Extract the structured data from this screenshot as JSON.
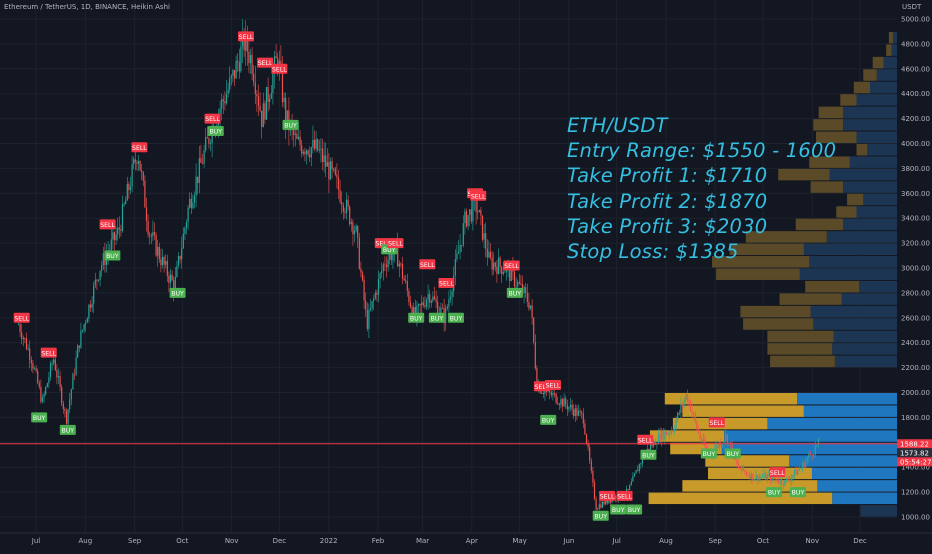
{
  "chart_data": {
    "type": "candlestick",
    "title": "Ethereum / TetherUS, 1D, BINANCE, Heikin Ashi",
    "unit": "USDT",
    "ylim": [
      900,
      5000
    ],
    "y_ticks": [
      1000,
      1200,
      1400,
      1600,
      1800,
      2000,
      2200,
      2400,
      2600,
      2800,
      3000,
      3200,
      3400,
      3600,
      3800,
      4000,
      4200,
      4400,
      4600,
      4800,
      5000
    ],
    "x_ticks": [
      {
        "label": "Jul",
        "date": "2021-07"
      },
      {
        "label": "Aug",
        "date": "2021-08"
      },
      {
        "label": "Sep",
        "date": "2021-09"
      },
      {
        "label": "Oct",
        "date": "2021-10"
      },
      {
        "label": "Nov",
        "date": "2021-11"
      },
      {
        "label": "Dec",
        "date": "2021-12"
      },
      {
        "label": "2022",
        "date": "2022-01"
      },
      {
        "label": "Feb",
        "date": "2022-02"
      },
      {
        "label": "Mar",
        "date": "2022-03"
      },
      {
        "label": "Apr",
        "date": "2022-04"
      },
      {
        "label": "May",
        "date": "2022-05"
      },
      {
        "label": "Jun",
        "date": "2022-06"
      },
      {
        "label": "Jul",
        "date": "2022-07"
      },
      {
        "label": "Aug",
        "date": "2022-08"
      },
      {
        "label": "Sep",
        "date": "2022-09"
      },
      {
        "label": "Oct",
        "date": "2022-10"
      },
      {
        "label": "Nov",
        "date": "2022-11"
      },
      {
        "label": "Dec",
        "date": "2022-12"
      }
    ],
    "price_path": [
      [
        "2021-06-20",
        2550
      ],
      [
        "2021-06-28",
        2280
      ],
      [
        "2021-07-05",
        1920
      ],
      [
        "2021-07-12",
        2280
      ],
      [
        "2021-07-20",
        1780
      ],
      [
        "2021-07-28",
        2400
      ],
      [
        "2021-08-10",
        3000
      ],
      [
        "2021-08-22",
        3300
      ],
      [
        "2021-09-03",
        3950
      ],
      [
        "2021-09-10",
        3300
      ],
      [
        "2021-09-20",
        3000
      ],
      [
        "2021-09-26",
        2850
      ],
      [
        "2021-10-05",
        3500
      ],
      [
        "2021-10-20",
        4150
      ],
      [
        "2021-11-01",
        4500
      ],
      [
        "2021-11-09",
        4820
      ],
      [
        "2021-11-14",
        4650
      ],
      [
        "2021-11-20",
        4200
      ],
      [
        "2021-11-30",
        4700
      ],
      [
        "2021-12-05",
        4200
      ],
      [
        "2021-12-12",
        4000
      ],
      [
        "2021-12-25",
        3950
      ],
      [
        "2022-01-05",
        3700
      ],
      [
        "2022-01-18",
        3300
      ],
      [
        "2022-01-25",
        2550
      ],
      [
        "2022-02-05",
        3050
      ],
      [
        "2022-02-12",
        3150
      ],
      [
        "2022-02-24",
        2600
      ],
      [
        "2022-03-05",
        2800
      ],
      [
        "2022-03-15",
        2600
      ],
      [
        "2022-03-28",
        3400
      ],
      [
        "2022-04-04",
        3500
      ],
      [
        "2022-04-12",
        3050
      ],
      [
        "2022-04-22",
        3000
      ],
      [
        "2022-05-01",
        2850
      ],
      [
        "2022-05-08",
        2700
      ],
      [
        "2022-05-12",
        2050
      ],
      [
        "2022-05-25",
        1950
      ],
      [
        "2022-06-10",
        1800
      ],
      [
        "2022-06-18",
        1080
      ],
      [
        "2022-06-28",
        1150
      ],
      [
        "2022-07-08",
        1200
      ],
      [
        "2022-07-18",
        1500
      ],
      [
        "2022-07-28",
        1650
      ],
      [
        "2022-08-05",
        1700
      ],
      [
        "2022-08-14",
        1990
      ],
      [
        "2022-08-22",
        1650
      ],
      [
        "2022-08-28",
        1500
      ],
      [
        "2022-09-08",
        1650
      ],
      [
        "2022-09-15",
        1400
      ],
      [
        "2022-09-25",
        1320
      ],
      [
        "2022-10-05",
        1320
      ],
      [
        "2022-10-15",
        1280
      ],
      [
        "2022-10-25",
        1400
      ],
      [
        "2022-11-05",
        1590
      ]
    ],
    "signals": [
      {
        "type": "SELL",
        "date": "2021-06-22",
        "price": 2600
      },
      {
        "type": "BUY",
        "date": "2021-07-03",
        "price": 1800
      },
      {
        "type": "SELL",
        "date": "2021-07-09",
        "price": 2320
      },
      {
        "type": "BUY",
        "date": "2021-07-21",
        "price": 1700
      },
      {
        "type": "SELL",
        "date": "2021-08-15",
        "price": 3350
      },
      {
        "type": "BUY",
        "date": "2021-08-18",
        "price": 3100
      },
      {
        "type": "SELL",
        "date": "2021-09-04",
        "price": 3970
      },
      {
        "type": "BUY",
        "date": "2021-09-28",
        "price": 2800
      },
      {
        "type": "SELL",
        "date": "2021-10-20",
        "price": 4200
      },
      {
        "type": "BUY",
        "date": "2021-10-22",
        "price": 4100
      },
      {
        "type": "SELL",
        "date": "2021-11-10",
        "price": 4860
      },
      {
        "type": "SELL",
        "date": "2021-11-22",
        "price": 4650
      },
      {
        "type": "SELL",
        "date": "2021-12-01",
        "price": 4600
      },
      {
        "type": "BUY",
        "date": "2021-12-08",
        "price": 4150
      },
      {
        "type": "SELL",
        "date": "2022-02-04",
        "price": 3200
      },
      {
        "type": "BUY",
        "date": "2022-02-08",
        "price": 3150
      },
      {
        "type": "SELL",
        "date": "2022-02-12",
        "price": 3200
      },
      {
        "type": "BUY",
        "date": "2022-02-25",
        "price": 2600
      },
      {
        "type": "SELL",
        "date": "2022-03-04",
        "price": 3030
      },
      {
        "type": "BUY",
        "date": "2022-03-10",
        "price": 2600
      },
      {
        "type": "SELL",
        "date": "2022-03-16",
        "price": 2880
      },
      {
        "type": "BUY",
        "date": "2022-03-22",
        "price": 2600
      },
      {
        "type": "SELL",
        "date": "2022-04-03",
        "price": 3600
      },
      {
        "type": "SELL",
        "date": "2022-04-05",
        "price": 3580
      },
      {
        "type": "SELL",
        "date": "2022-04-26",
        "price": 3020
      },
      {
        "type": "BUY",
        "date": "2022-04-28",
        "price": 2800
      },
      {
        "type": "SELL",
        "date": "2022-05-15",
        "price": 2050
      },
      {
        "type": "BUY",
        "date": "2022-05-19",
        "price": 1780
      },
      {
        "type": "SELL",
        "date": "2022-05-22",
        "price": 2060
      },
      {
        "type": "BUY",
        "date": "2022-06-21",
        "price": 1010
      },
      {
        "type": "SELL",
        "date": "2022-06-25",
        "price": 1170
      },
      {
        "type": "BUY",
        "date": "2022-07-02",
        "price": 1060
      },
      {
        "type": "SELL",
        "date": "2022-07-06",
        "price": 1170
      },
      {
        "type": "BUY",
        "date": "2022-07-12",
        "price": 1060
      },
      {
        "type": "SELL",
        "date": "2022-07-19",
        "price": 1620
      },
      {
        "type": "BUY",
        "date": "2022-07-21",
        "price": 1500
      },
      {
        "type": "BUY",
        "date": "2022-08-28",
        "price": 1510
      },
      {
        "type": "SELL",
        "date": "2022-09-02",
        "price": 1760
      },
      {
        "type": "BUY",
        "date": "2022-09-12",
        "price": 1510
      },
      {
        "type": "SELL",
        "date": "2022-10-10",
        "price": 1360
      },
      {
        "type": "BUY",
        "date": "2022-10-08",
        "price": 1200
      },
      {
        "type": "BUY",
        "date": "2022-10-23",
        "price": 1200
      }
    ],
    "volume_profile": [
      {
        "low": 1000,
        "high": 1100,
        "up": 0,
        "down": 27
      },
      {
        "low": 1100,
        "high": 1200,
        "up": 136,
        "down": 48
      },
      {
        "low": 1200,
        "high": 1300,
        "up": 100,
        "down": 59
      },
      {
        "low": 1300,
        "high": 1400,
        "up": 77,
        "down": 63
      },
      {
        "low": 1400,
        "high": 1500,
        "up": 62,
        "down": 80
      },
      {
        "low": 1500,
        "high": 1600,
        "up": 38,
        "down": 130
      },
      {
        "low": 1600,
        "high": 1700,
        "up": 55,
        "down": 128
      },
      {
        "low": 1700,
        "high": 1800,
        "up": 70,
        "down": 96
      },
      {
        "low": 1800,
        "high": 1900,
        "up": 90,
        "down": 69
      },
      {
        "low": 1900,
        "high": 2000,
        "up": 98,
        "down": 74
      },
      {
        "low": 2000,
        "high": 2100,
        "up": 0,
        "down": 0
      },
      {
        "low": 2100,
        "high": 2200,
        "up": 0,
        "down": 0
      },
      {
        "low": 2200,
        "high": 2300,
        "up": 48,
        "down": 46
      },
      {
        "low": 2300,
        "high": 2400,
        "up": 48,
        "down": 48
      },
      {
        "low": 2400,
        "high": 2500,
        "up": 49,
        "down": 47
      },
      {
        "low": 2500,
        "high": 2600,
        "up": 52,
        "down": 62
      },
      {
        "low": 2600,
        "high": 2700,
        "up": 52,
        "down": 64
      },
      {
        "low": 2700,
        "high": 2800,
        "up": 46,
        "down": 41
      },
      {
        "low": 2800,
        "high": 2900,
        "up": 40,
        "down": 28
      },
      {
        "low": 2900,
        "high": 3000,
        "up": 62,
        "down": 72
      },
      {
        "low": 3000,
        "high": 3100,
        "up": 72,
        "down": 65
      },
      {
        "low": 3100,
        "high": 3200,
        "up": 55,
        "down": 69
      },
      {
        "low": 3200,
        "high": 3300,
        "up": 60,
        "down": 52
      },
      {
        "low": 3300,
        "high": 3400,
        "up": 35,
        "down": 40
      },
      {
        "low": 3400,
        "high": 3500,
        "up": 15,
        "down": 30
      },
      {
        "low": 3500,
        "high": 3600,
        "up": 12,
        "down": 25
      },
      {
        "low": 3600,
        "high": 3700,
        "up": 24,
        "down": 40
      },
      {
        "low": 3700,
        "high": 3800,
        "up": 38,
        "down": 50
      },
      {
        "low": 3800,
        "high": 3900,
        "up": 30,
        "down": 35
      },
      {
        "low": 3900,
        "high": 4000,
        "up": 8,
        "down": 22
      },
      {
        "low": 4000,
        "high": 4100,
        "up": 30,
        "down": 30
      },
      {
        "low": 4100,
        "high": 4200,
        "up": 22,
        "down": 40
      },
      {
        "low": 4200,
        "high": 4300,
        "up": 18,
        "down": 40
      },
      {
        "low": 4300,
        "high": 4400,
        "up": 12,
        "down": 30
      },
      {
        "low": 4400,
        "high": 4500,
        "up": 12,
        "down": 20
      },
      {
        "low": 4500,
        "high": 4600,
        "up": 10,
        "down": 15
      },
      {
        "low": 4600,
        "high": 4700,
        "up": 8,
        "down": 10
      },
      {
        "low": 4700,
        "high": 4800,
        "up": 4,
        "down": 4
      },
      {
        "low": 4800,
        "high": 4900,
        "up": 3,
        "down": 3
      }
    ],
    "price_line": 1588.22,
    "price_labels": [
      {
        "text": "1588.22",
        "value": 1588.22,
        "color": "#f23645"
      },
      {
        "text": "1573.82",
        "value": 1573.82,
        "color": "#2a2e39"
      },
      {
        "text": "05:54:27",
        "value": 1498,
        "color": "#f23645"
      }
    ]
  },
  "header": {
    "title": "Ethereum / TetherUS, 1D, BINANCE, Heikin Ashi",
    "unit": "USDT"
  },
  "overlay": {
    "pair": "ETH/USDT",
    "entry": "Entry Range: $1550 - 1600",
    "tp1": "Take Profit 1: $1710",
    "tp2": "Take Profit 2: $1870",
    "tp3": "Take Profit 3: $2030",
    "sl": "Stop Loss: $1385"
  },
  "colors": {
    "background": "#131722",
    "up": "#26a69a",
    "down": "#ef5350",
    "buy": "#4caf50",
    "sell": "#f23645",
    "vp_up_in": "#c79a2a",
    "vp_down_in": "#1f77c0",
    "vp_up_out": "#5a4a27",
    "vp_down_out": "#1c3552",
    "overlay_text": "#35bfe0",
    "axis_text": "#b2b5be"
  }
}
